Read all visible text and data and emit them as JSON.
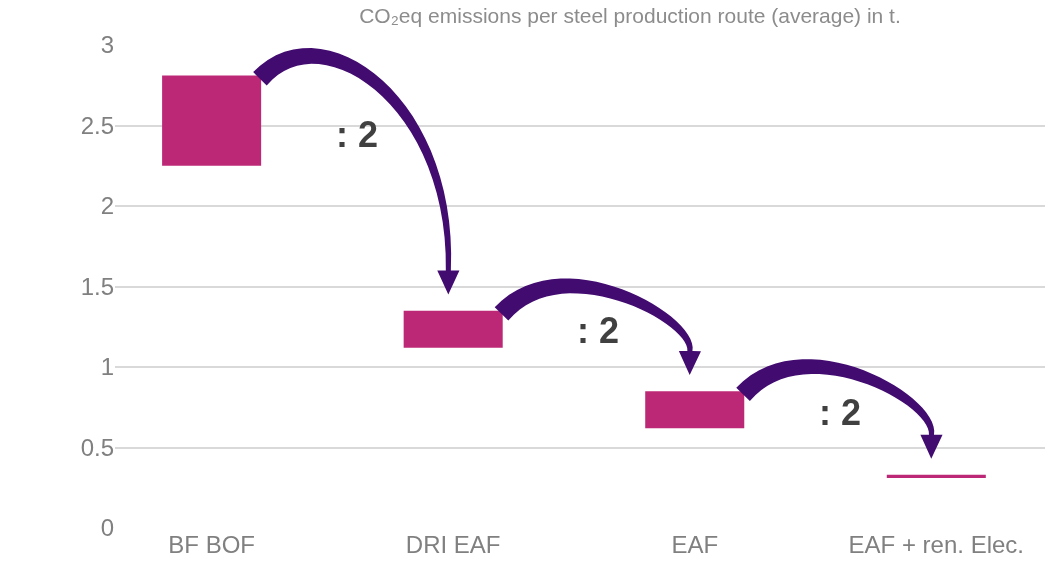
{
  "chart_data": {
    "type": "bar",
    "title": "CO₂eq emissions per steel production route (average) in t.",
    "categories": [
      "BF BOF",
      "DRI EAF",
      "EAF",
      "EAF + ren. Elec."
    ],
    "values": [
      0.56,
      0.23,
      0.23,
      0.02
    ],
    "base": [
      2.25,
      1.12,
      0.62,
      0.31
    ],
    "color": "#bc2876",
    "ylim": [
      0,
      3
    ],
    "yticks": [
      0,
      0.5,
      1,
      1.5,
      2,
      2.5,
      3
    ],
    "grid": "y",
    "annotations": [
      ": 2",
      ": 2",
      ": 2"
    ]
  }
}
